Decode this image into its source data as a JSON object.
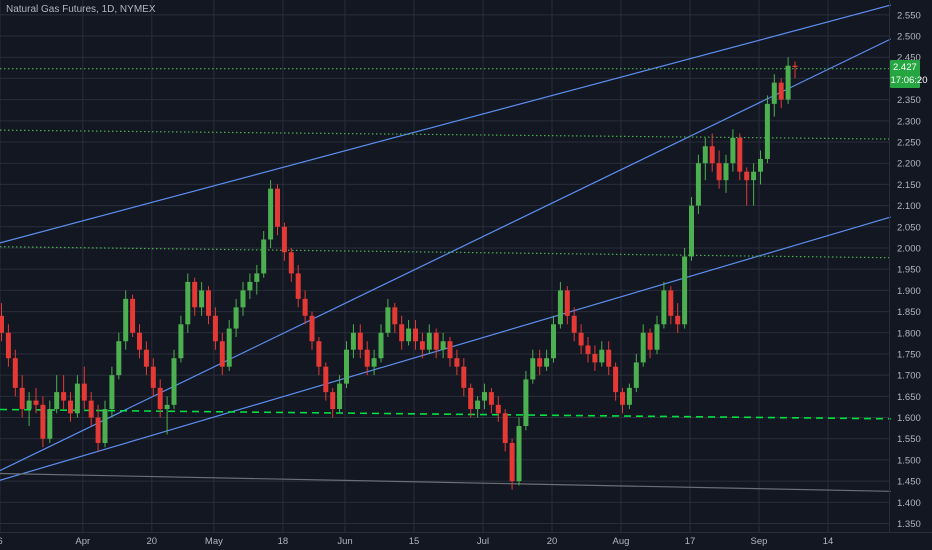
{
  "title": "Natural Gas Futures, 1D, NYMEX",
  "colors": {
    "background": "#131722",
    "grid": "#2a2e39",
    "up": "#4caf50",
    "down": "#e53935",
    "trendline": "#5b8def",
    "support_dotted": "#4caf50",
    "support_dashed": "#00e040",
    "grey_line": "#6b6e75",
    "axis_text": "#b2b5be",
    "badge_bg": "#26a641"
  },
  "chart_data": {
    "type": "candlestick",
    "ylim": [
      1.33,
      2.585
    ],
    "y_ticks": [
      2.55,
      2.5,
      2.45,
      2.4,
      2.35,
      2.3,
      2.25,
      2.2,
      2.15,
      2.1,
      2.05,
      2.0,
      1.95,
      1.9,
      1.85,
      1.8,
      1.75,
      1.7,
      1.65,
      1.6,
      1.55,
      1.5,
      1.45,
      1.4,
      1.35
    ],
    "y_tick_labels": [
      "2.550",
      "2.500",
      "2.450",
      "2.400",
      "2.350",
      "2.300",
      "2.250",
      "2.200",
      "2.150",
      "2.100",
      "2.050",
      "2.000",
      "1.950",
      "1.900",
      "1.850",
      "1.800",
      "1.750",
      "1.700",
      "1.650",
      "1.600",
      "1.550",
      "1.500",
      "1.450",
      "1.400",
      "1.350"
    ],
    "x_tick_labels": [
      "6",
      "Apr",
      "20",
      "May",
      "18",
      "Jun",
      "15",
      "Jul",
      "20",
      "Aug",
      "17",
      "Sep",
      "14"
    ],
    "x_tick_bar_index": [
      0,
      12,
      22,
      31,
      41,
      50,
      60,
      70,
      80,
      90,
      100,
      110,
      120
    ],
    "last_price": {
      "value": 2.427,
      "label": "2.427",
      "countdown": "17:06:20"
    },
    "candles": [
      [
        1.84,
        1.87,
        1.78,
        1.8
      ],
      [
        1.8,
        1.82,
        1.72,
        1.74
      ],
      [
        1.74,
        1.76,
        1.65,
        1.67
      ],
      [
        1.67,
        1.7,
        1.6,
        1.62
      ],
      [
        1.62,
        1.66,
        1.58,
        1.64
      ],
      [
        1.64,
        1.67,
        1.61,
        1.63
      ],
      [
        1.63,
        1.65,
        1.53,
        1.55
      ],
      [
        1.55,
        1.64,
        1.54,
        1.62
      ],
      [
        1.62,
        1.7,
        1.61,
        1.66
      ],
      [
        1.66,
        1.7,
        1.62,
        1.64
      ],
      [
        1.64,
        1.66,
        1.59,
        1.61
      ],
      [
        1.61,
        1.7,
        1.6,
        1.68
      ],
      [
        1.68,
        1.72,
        1.62,
        1.64
      ],
      [
        1.64,
        1.66,
        1.58,
        1.6
      ],
      [
        1.6,
        1.63,
        1.52,
        1.54
      ],
      [
        1.54,
        1.64,
        1.53,
        1.62
      ],
      [
        1.62,
        1.72,
        1.6,
        1.7
      ],
      [
        1.7,
        1.8,
        1.69,
        1.78
      ],
      [
        1.78,
        1.9,
        1.76,
        1.88
      ],
      [
        1.88,
        1.89,
        1.79,
        1.8
      ],
      [
        1.8,
        1.82,
        1.74,
        1.76
      ],
      [
        1.76,
        1.78,
        1.7,
        1.72
      ],
      [
        1.72,
        1.74,
        1.65,
        1.67
      ],
      [
        1.67,
        1.69,
        1.6,
        1.62
      ],
      [
        1.62,
        1.65,
        1.56,
        1.63
      ],
      [
        1.63,
        1.76,
        1.62,
        1.74
      ],
      [
        1.74,
        1.84,
        1.73,
        1.82
      ],
      [
        1.82,
        1.94,
        1.8,
        1.92
      ],
      [
        1.92,
        1.93,
        1.84,
        1.86
      ],
      [
        1.86,
        1.92,
        1.84,
        1.9
      ],
      [
        1.9,
        1.91,
        1.82,
        1.84
      ],
      [
        1.84,
        1.86,
        1.76,
        1.78
      ],
      [
        1.78,
        1.8,
        1.7,
        1.72
      ],
      [
        1.72,
        1.83,
        1.71,
        1.81
      ],
      [
        1.81,
        1.88,
        1.79,
        1.86
      ],
      [
        1.86,
        1.92,
        1.84,
        1.9
      ],
      [
        1.9,
        1.94,
        1.88,
        1.92
      ],
      [
        1.92,
        1.96,
        1.89,
        1.94
      ],
      [
        1.94,
        2.04,
        1.93,
        2.02
      ],
      [
        2.02,
        2.16,
        2.0,
        2.14
      ],
      [
        2.14,
        2.15,
        2.03,
        2.05
      ],
      [
        2.05,
        2.06,
        1.97,
        1.99
      ],
      [
        1.99,
        2.0,
        1.92,
        1.94
      ],
      [
        1.94,
        1.96,
        1.86,
        1.88
      ],
      [
        1.88,
        1.9,
        1.82,
        1.84
      ],
      [
        1.84,
        1.85,
        1.76,
        1.78
      ],
      [
        1.78,
        1.79,
        1.7,
        1.72
      ],
      [
        1.72,
        1.73,
        1.64,
        1.66
      ],
      [
        1.66,
        1.67,
        1.6,
        1.62
      ],
      [
        1.62,
        1.7,
        1.61,
        1.68
      ],
      [
        1.68,
        1.78,
        1.67,
        1.76
      ],
      [
        1.76,
        1.82,
        1.74,
        1.8
      ],
      [
        1.8,
        1.82,
        1.74,
        1.76
      ],
      [
        1.76,
        1.78,
        1.7,
        1.72
      ],
      [
        1.72,
        1.76,
        1.7,
        1.74
      ],
      [
        1.74,
        1.82,
        1.73,
        1.8
      ],
      [
        1.8,
        1.88,
        1.79,
        1.86
      ],
      [
        1.86,
        1.87,
        1.8,
        1.82
      ],
      [
        1.82,
        1.84,
        1.76,
        1.78
      ],
      [
        1.78,
        1.83,
        1.77,
        1.81
      ],
      [
        1.81,
        1.83,
        1.76,
        1.78
      ],
      [
        1.78,
        1.8,
        1.74,
        1.76
      ],
      [
        1.76,
        1.82,
        1.75,
        1.8
      ],
      [
        1.8,
        1.81,
        1.74,
        1.76
      ],
      [
        1.76,
        1.8,
        1.74,
        1.78
      ],
      [
        1.78,
        1.79,
        1.72,
        1.74
      ],
      [
        1.74,
        1.76,
        1.7,
        1.72
      ],
      [
        1.72,
        1.74,
        1.65,
        1.67
      ],
      [
        1.67,
        1.68,
        1.6,
        1.62
      ],
      [
        1.62,
        1.65,
        1.6,
        1.64
      ],
      [
        1.64,
        1.68,
        1.62,
        1.66
      ],
      [
        1.66,
        1.67,
        1.61,
        1.63
      ],
      [
        1.63,
        1.65,
        1.59,
        1.61
      ],
      [
        1.61,
        1.62,
        1.52,
        1.54
      ],
      [
        1.54,
        1.55,
        1.43,
        1.45
      ],
      [
        1.45,
        1.6,
        1.44,
        1.58
      ],
      [
        1.58,
        1.71,
        1.57,
        1.69
      ],
      [
        1.69,
        1.76,
        1.68,
        1.74
      ],
      [
        1.74,
        1.76,
        1.7,
        1.72
      ],
      [
        1.72,
        1.76,
        1.71,
        1.74
      ],
      [
        1.74,
        1.84,
        1.73,
        1.82
      ],
      [
        1.82,
        1.92,
        1.81,
        1.9
      ],
      [
        1.9,
        1.91,
        1.82,
        1.84
      ],
      [
        1.84,
        1.86,
        1.78,
        1.8
      ],
      [
        1.8,
        1.82,
        1.75,
        1.77
      ],
      [
        1.77,
        1.79,
        1.73,
        1.75
      ],
      [
        1.75,
        1.77,
        1.71,
        1.73
      ],
      [
        1.73,
        1.78,
        1.72,
        1.76
      ],
      [
        1.76,
        1.78,
        1.7,
        1.72
      ],
      [
        1.72,
        1.73,
        1.64,
        1.66
      ],
      [
        1.66,
        1.67,
        1.61,
        1.63
      ],
      [
        1.63,
        1.68,
        1.62,
        1.67
      ],
      [
        1.67,
        1.75,
        1.66,
        1.73
      ],
      [
        1.73,
        1.82,
        1.72,
        1.8
      ],
      [
        1.8,
        1.81,
        1.74,
        1.76
      ],
      [
        1.76,
        1.84,
        1.75,
        1.82
      ],
      [
        1.82,
        1.92,
        1.81,
        1.9
      ],
      [
        1.9,
        1.91,
        1.82,
        1.84
      ],
      [
        1.84,
        1.87,
        1.8,
        1.82
      ],
      [
        1.82,
        2.0,
        1.81,
        1.98
      ],
      [
        1.98,
        2.12,
        1.97,
        2.1
      ],
      [
        2.1,
        2.22,
        2.08,
        2.2
      ],
      [
        2.2,
        2.26,
        2.16,
        2.24
      ],
      [
        2.24,
        2.27,
        2.18,
        2.2
      ],
      [
        2.2,
        2.23,
        2.14,
        2.16
      ],
      [
        2.16,
        2.22,
        2.13,
        2.2
      ],
      [
        2.2,
        2.28,
        2.18,
        2.26
      ],
      [
        2.26,
        2.27,
        2.16,
        2.18
      ],
      [
        2.18,
        2.19,
        2.1,
        2.16
      ],
      [
        2.16,
        2.2,
        2.1,
        2.18
      ],
      [
        2.18,
        2.23,
        2.15,
        2.21
      ],
      [
        2.21,
        2.36,
        2.2,
        2.34
      ],
      [
        2.34,
        2.41,
        2.31,
        2.39
      ],
      [
        2.39,
        2.4,
        2.33,
        2.35
      ],
      [
        2.35,
        2.45,
        2.34,
        2.43
      ],
      [
        2.43,
        2.44,
        2.4,
        2.427
      ]
    ],
    "trendlines": [
      {
        "style": "solid",
        "color": "trendline",
        "p1": [
          0,
          2.012
        ],
        "p2": [
          129.1,
          2.573
        ]
      },
      {
        "style": "solid",
        "color": "trendline",
        "p1": [
          0,
          1.475
        ],
        "p2": [
          129.1,
          2.493
        ]
      },
      {
        "style": "solid",
        "color": "trendline",
        "p1": [
          0,
          1.452
        ],
        "p2": [
          129.1,
          2.073
        ]
      },
      {
        "style": "solid",
        "color": "grey_line",
        "p1": [
          0,
          1.468
        ],
        "p2": [
          129.1,
          1.426
        ]
      },
      {
        "style": "dotted",
        "color": "support_dotted",
        "p1": [
          0,
          2.423
        ],
        "p2": [
          129.1,
          2.423
        ]
      },
      {
        "style": "dotted",
        "color": "support_dotted",
        "p1": [
          0,
          2.278
        ],
        "p2": [
          129.1,
          2.257
        ]
      },
      {
        "style": "dotted",
        "color": "support_dotted",
        "p1": [
          0,
          2.003
        ],
        "p2": [
          129.1,
          1.977
        ]
      },
      {
        "style": "dashed",
        "color": "support_dashed",
        "p1": [
          0,
          1.619
        ],
        "p2": [
          129.1,
          1.597
        ]
      }
    ]
  }
}
